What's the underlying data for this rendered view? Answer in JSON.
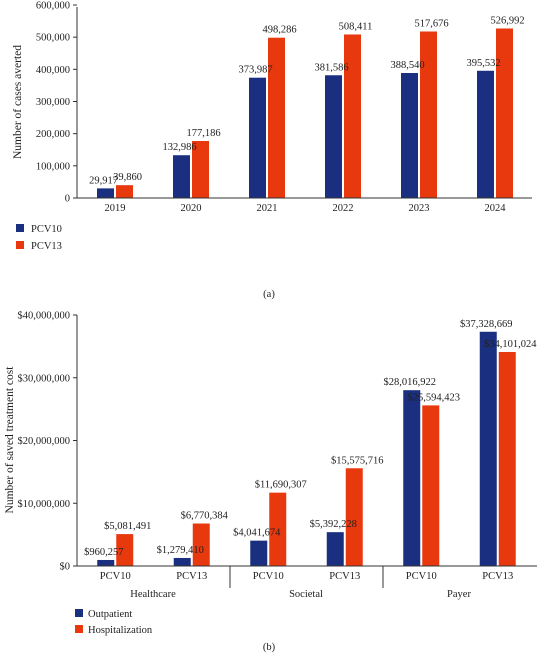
{
  "colors": {
    "series_a": "#1a2f80",
    "series_b": "#e8380d"
  },
  "chart_data": [
    {
      "type": "bar",
      "panel_label": "(a)",
      "ylabel": "Number of cases averted",
      "categories": [
        "2019",
        "2020",
        "2021",
        "2022",
        "2023",
        "2024"
      ],
      "ylim": [
        0,
        600000
      ],
      "yticks": [
        "0",
        "100,000",
        "200,000",
        "300,000",
        "400,000",
        "500,000",
        "600,000"
      ],
      "series": [
        {
          "name": "PCV10",
          "values": [
            29917,
            132986,
            373987,
            381586,
            388540,
            395532
          ],
          "labels": [
            "29,917",
            "132,986",
            "373,987",
            "381,586",
            "388,540",
            "395,532"
          ]
        },
        {
          "name": "PCV13",
          "values": [
            39860,
            177186,
            498286,
            508411,
            517676,
            526992
          ],
          "labels": [
            "39,860",
            "177,186",
            "498,286",
            "508,411",
            "517,676",
            "526,992"
          ]
        }
      ],
      "legend_position": "bottom-left"
    },
    {
      "type": "bar",
      "panel_label": "(b)",
      "ylabel": "Number of saved treatment cost",
      "categories": [
        "PCV10",
        "PCV13",
        "PCV10",
        "PCV13",
        "PCV10",
        "PCV13"
      ],
      "groups": [
        "Healthcare",
        "Societal",
        "Payer"
      ],
      "ylim": [
        0,
        40000000
      ],
      "yticks": [
        "$0",
        "$10,000,000",
        "$20,000,000",
        "$30,000,000",
        "$40,000,000"
      ],
      "series": [
        {
          "name": "Outpatient",
          "values": [
            960257,
            1279410,
            4041674,
            5392228,
            28016922,
            37328669
          ],
          "labels": [
            "$960,257",
            "$1,279,410",
            "$4,041,674",
            "$5,392,228",
            "$28,016,922",
            "$37,328,669"
          ]
        },
        {
          "name": "Hospitalization",
          "values": [
            5081491,
            6770384,
            11690307,
            15575716,
            25594423,
            34101024
          ],
          "labels": [
            "$5,081,491",
            "$6,770,384",
            "$11,690,307",
            "$15,575,716",
            "$25,594,423",
            "$34,101,024"
          ]
        }
      ],
      "legend_position": "bottom-left"
    }
  ]
}
